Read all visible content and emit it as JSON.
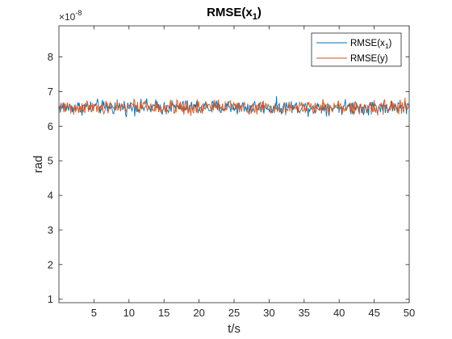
{
  "chart_data": {
    "type": "line",
    "title_main": "RMSE(x",
    "title_sub": "1",
    "title_close": ")",
    "xlabel": "t/s",
    "ylabel": "rad",
    "y_scale_base": "×10",
    "y_scale_exp": "-8",
    "xlim": [
      0,
      50
    ],
    "ylim": [
      0.9,
      8.9
    ],
    "x_ticks": [
      5,
      10,
      15,
      20,
      25,
      30,
      35,
      40,
      45,
      50
    ],
    "x_tick_labels": [
      "5",
      "10",
      "15",
      "20",
      "25",
      "30",
      "35",
      "40",
      "45",
      "50"
    ],
    "y_ticks": [
      1,
      2,
      3,
      4,
      5,
      6,
      7,
      8
    ],
    "y_tick_labels": [
      "1",
      "2",
      "3",
      "4",
      "5",
      "6",
      "7",
      "8"
    ],
    "grid": false,
    "legend_position": "top-right",
    "series": [
      {
        "legend_main": "RMSE(x",
        "legend_sub": "1",
        "legend_close": ")",
        "color": "#0072bd",
        "mean": 6.55,
        "amplitude": 0.3,
        "x_range": [
          0,
          50
        ],
        "points": 500
      },
      {
        "legend_main": "RMSE(y)",
        "color": "#d95319",
        "mean": 6.55,
        "amplitude": 0.3,
        "x_range": [
          0,
          50
        ],
        "points": 500
      }
    ]
  }
}
